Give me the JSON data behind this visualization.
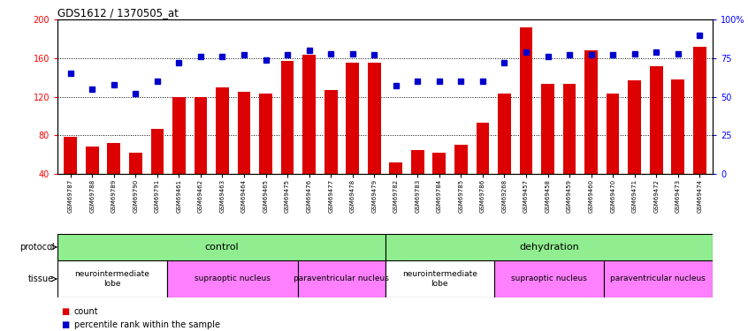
{
  "title": "GDS1612 / 1370505_at",
  "samples": [
    "GSM69787",
    "GSM69788",
    "GSM69789",
    "GSM69790",
    "GSM69791",
    "GSM69461",
    "GSM69462",
    "GSM69463",
    "GSM69464",
    "GSM69465",
    "GSM69475",
    "GSM69476",
    "GSM69477",
    "GSM69478",
    "GSM69479",
    "GSM69782",
    "GSM69783",
    "GSM69784",
    "GSM69785",
    "GSM69786",
    "GSM69268",
    "GSM69457",
    "GSM69458",
    "GSM69459",
    "GSM69460",
    "GSM69470",
    "GSM69471",
    "GSM69472",
    "GSM69473",
    "GSM69474"
  ],
  "counts": [
    78,
    68,
    72,
    62,
    87,
    120,
    120,
    130,
    125,
    123,
    157,
    163,
    127,
    155,
    155,
    52,
    65,
    62,
    70,
    93,
    123,
    192,
    133,
    133,
    168,
    123,
    137,
    152,
    138,
    172
  ],
  "percentiles": [
    65,
    55,
    58,
    52,
    60,
    72,
    76,
    76,
    77,
    74,
    77,
    80,
    78,
    78,
    77,
    57,
    60,
    60,
    60,
    60,
    72,
    79,
    76,
    77,
    77,
    77,
    78,
    79,
    78,
    90
  ],
  "protocol_groups": [
    {
      "label": "control",
      "start": 0,
      "end": 14,
      "color": "#90EE90"
    },
    {
      "label": "dehydration",
      "start": 15,
      "end": 29,
      "color": "#90EE90"
    }
  ],
  "tissue_groups": [
    {
      "label": "neurointermediate\nlobe",
      "start": 0,
      "end": 4,
      "color": "#ffffff"
    },
    {
      "label": "supraoptic nucleus",
      "start": 5,
      "end": 10,
      "color": "#FF80FF"
    },
    {
      "label": "paraventricular nucleus",
      "start": 11,
      "end": 14,
      "color": "#FF80FF"
    },
    {
      "label": "neurointermediate\nlobe",
      "start": 15,
      "end": 19,
      "color": "#ffffff"
    },
    {
      "label": "supraoptic nucleus",
      "start": 20,
      "end": 24,
      "color": "#FF80FF"
    },
    {
      "label": "paraventricular nucleus",
      "start": 25,
      "end": 29,
      "color": "#FF80FF"
    }
  ],
  "ylim_left": [
    40,
    200
  ],
  "ylim_right": [
    0,
    100
  ],
  "bar_color": "#DD0000",
  "dot_color": "#0000CC",
  "grid_color": "#000000",
  "yticks_left": [
    40,
    80,
    120,
    160,
    200
  ],
  "yticks_right": [
    0,
    25,
    50,
    75,
    100
  ],
  "ytick_right_labels": [
    "0",
    "25",
    "50",
    "75",
    "100%"
  ],
  "background_color": "#ffffff"
}
